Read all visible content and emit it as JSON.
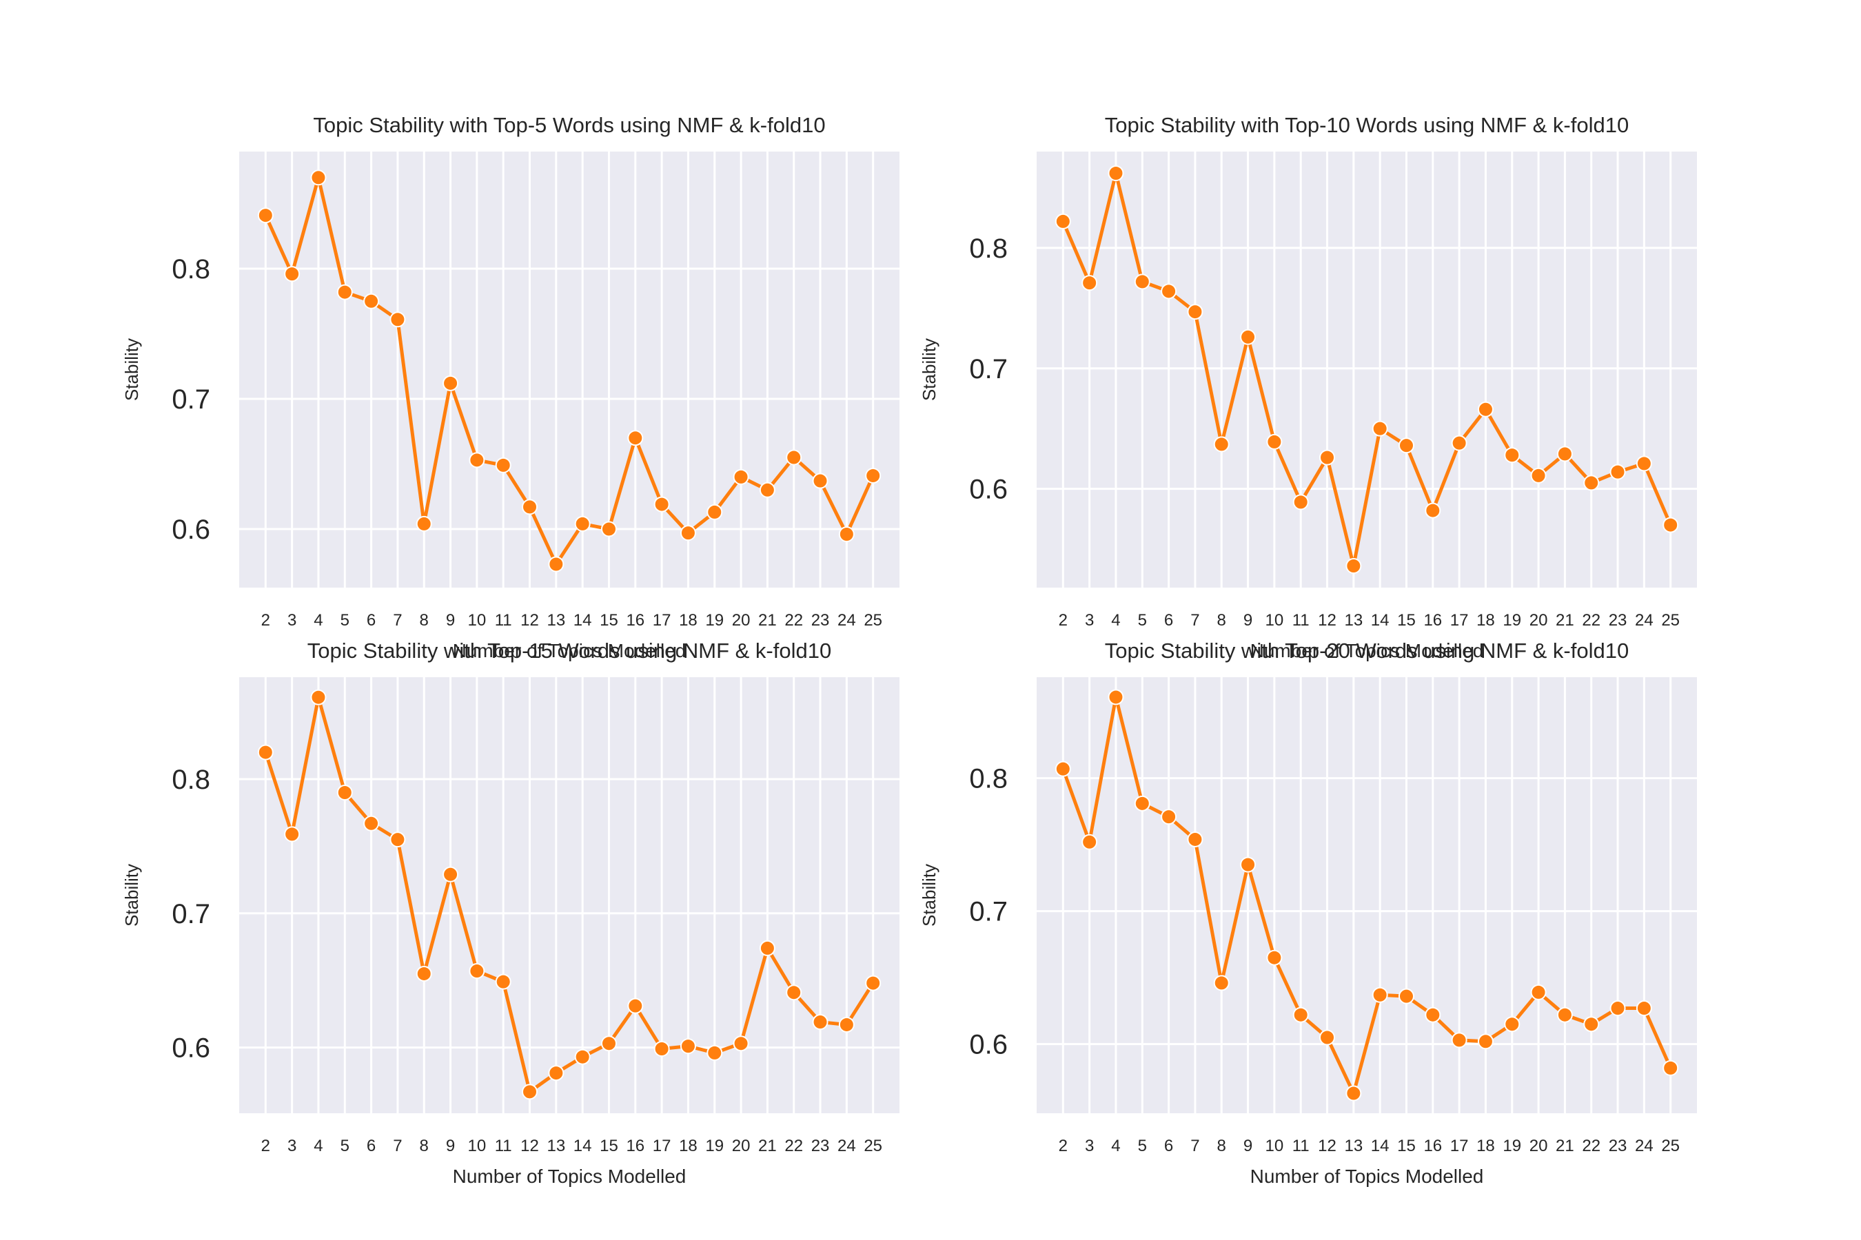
{
  "chart_data": [
    {
      "type": "line",
      "title": "Topic Stability with Top-5 Words using NMF & k-fold10",
      "xlabel": "Number of Topics Modelled",
      "ylabel": "Stability",
      "x": [
        2,
        3,
        4,
        5,
        6,
        7,
        8,
        9,
        10,
        11,
        12,
        13,
        14,
        15,
        16,
        17,
        18,
        19,
        20,
        21,
        22,
        23,
        24,
        25
      ],
      "values": [
        0.841,
        0.796,
        0.87,
        0.782,
        0.775,
        0.761,
        0.604,
        0.712,
        0.653,
        0.649,
        0.617,
        0.573,
        0.604,
        0.6,
        0.67,
        0.619,
        0.597,
        0.613,
        0.64,
        0.63,
        0.655,
        0.637,
        0.596,
        0.641
      ],
      "yticks": [
        0.6,
        0.7,
        0.8
      ],
      "ylim": [
        0.555,
        0.89
      ],
      "grid": true,
      "color": "#ff7f0e"
    },
    {
      "type": "line",
      "title": "Topic Stability with Top-10 Words using NMF & k-fold10",
      "xlabel": "Number of Topics Modelled",
      "ylabel": "Stability",
      "x": [
        2,
        3,
        4,
        5,
        6,
        7,
        8,
        9,
        10,
        11,
        12,
        13,
        14,
        15,
        16,
        17,
        18,
        19,
        20,
        21,
        22,
        23,
        24,
        25
      ],
      "values": [
        0.822,
        0.771,
        0.862,
        0.772,
        0.764,
        0.747,
        0.637,
        0.726,
        0.639,
        0.589,
        0.626,
        0.536,
        0.65,
        0.636,
        0.582,
        0.638,
        0.666,
        0.628,
        0.611,
        0.629,
        0.605,
        0.614,
        0.621,
        0.57
      ],
      "yticks": [
        0.6,
        0.7,
        0.8
      ],
      "ylim": [
        0.518,
        0.88
      ],
      "grid": true,
      "color": "#ff7f0e"
    },
    {
      "type": "line",
      "title": "Topic Stability with Top-15 Words using NMF & k-fold10",
      "xlabel": "Number of Topics Modelled",
      "ylabel": "Stability",
      "x": [
        2,
        3,
        4,
        5,
        6,
        7,
        8,
        9,
        10,
        11,
        12,
        13,
        14,
        15,
        16,
        17,
        18,
        19,
        20,
        21,
        22,
        23,
        24,
        25
      ],
      "values": [
        0.82,
        0.759,
        0.861,
        0.79,
        0.767,
        0.755,
        0.655,
        0.729,
        0.657,
        0.649,
        0.567,
        0.581,
        0.593,
        0.603,
        0.631,
        0.599,
        0.601,
        0.596,
        0.603,
        0.674,
        0.641,
        0.619,
        0.617,
        0.648
      ],
      "yticks": [
        0.6,
        0.7,
        0.8
      ],
      "ylim": [
        0.551,
        0.876
      ],
      "grid": true,
      "color": "#ff7f0e"
    },
    {
      "type": "line",
      "title": "Topic Stability with Top-20 Words using NMF & k-fold10",
      "xlabel": "Number of Topics Modelled",
      "ylabel": "Stability",
      "x": [
        2,
        3,
        4,
        5,
        6,
        7,
        8,
        9,
        10,
        11,
        12,
        13,
        14,
        15,
        16,
        17,
        18,
        19,
        20,
        21,
        22,
        23,
        24,
        25
      ],
      "values": [
        0.807,
        0.752,
        0.861,
        0.781,
        0.771,
        0.754,
        0.646,
        0.735,
        0.665,
        0.622,
        0.605,
        0.563,
        0.637,
        0.636,
        0.622,
        0.603,
        0.602,
        0.615,
        0.639,
        0.622,
        0.615,
        0.627,
        0.627,
        0.582
      ],
      "yticks": [
        0.6,
        0.7,
        0.8
      ],
      "ylim": [
        0.548,
        0.876
      ],
      "grid": true,
      "color": "#ff7f0e"
    }
  ]
}
